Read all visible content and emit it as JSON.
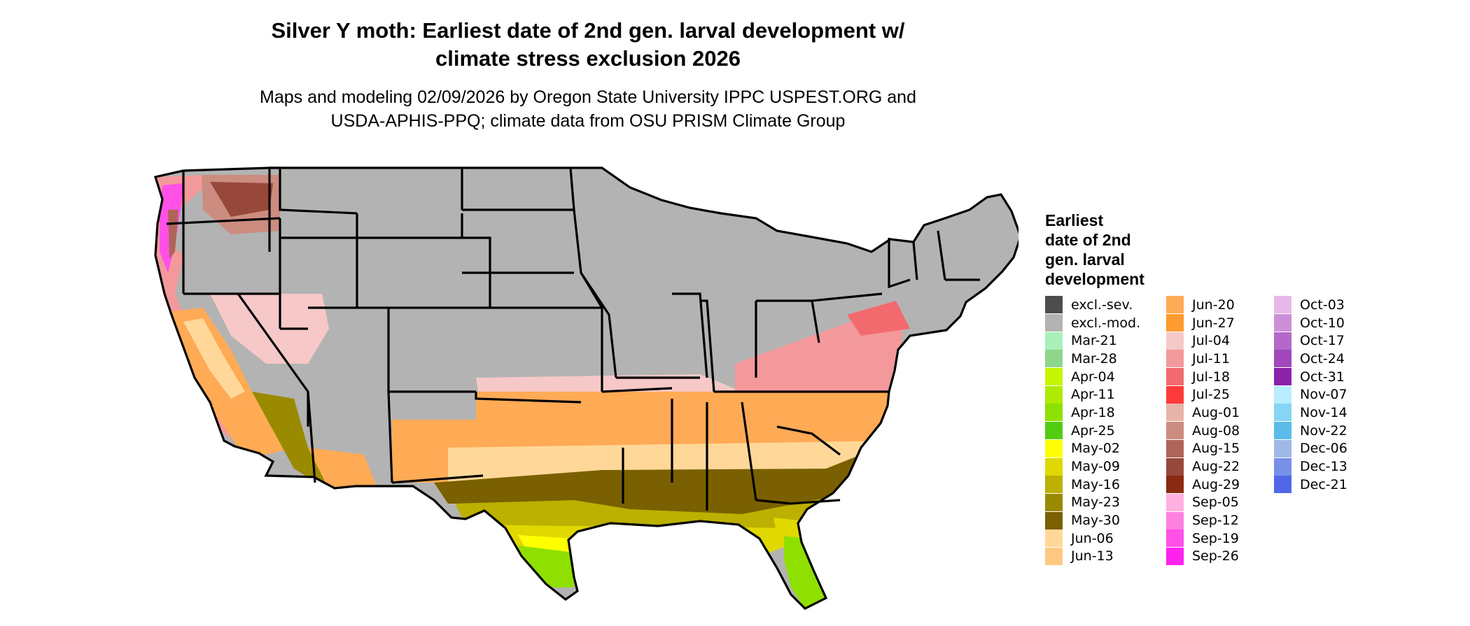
{
  "title_line1": "Silver Y moth: Earliest date of 2nd gen. larval development w/",
  "title_line2": "climate stress exclusion 2026",
  "subtitle_line1": "Maps and modeling 02/09/2026 by Oregon State University IPPC USPEST.ORG and",
  "subtitle_line2": "USDA-APHIS-PPQ; climate data from OSU PRISM Climate Group",
  "map": {
    "region": "contiguous-united-states",
    "excluded_color": "#b3b3b3",
    "state_border_color": "#000000"
  },
  "legend": {
    "title_lines": [
      "Earliest",
      "date of 2nd",
      "gen. larval",
      "development"
    ],
    "columns": [
      [
        {
          "label": "excl.-sev.",
          "color": "#4d4d4d"
        },
        {
          "label": "excl.-mod.",
          "color": "#b3b3b3"
        },
        {
          "label": "Mar-21",
          "color": "#a8f0b8"
        },
        {
          "label": "Mar-28",
          "color": "#8ed68a"
        },
        {
          "label": "Apr-04",
          "color": "#c6f500"
        },
        {
          "label": "Apr-11",
          "color": "#aeeb00"
        },
        {
          "label": "Apr-18",
          "color": "#8fe000"
        },
        {
          "label": "Apr-25",
          "color": "#52cc12"
        },
        {
          "label": "May-02",
          "color": "#ffff00"
        },
        {
          "label": "May-09",
          "color": "#e0d800"
        },
        {
          "label": "May-16",
          "color": "#bcb000"
        },
        {
          "label": "May-23",
          "color": "#9a8a00"
        },
        {
          "label": "May-30",
          "color": "#7a6000"
        },
        {
          "label": "Jun-06",
          "color": "#ffd899"
        },
        {
          "label": "Jun-13",
          "color": "#ffc882"
        }
      ],
      [
        {
          "label": "Jun-20",
          "color": "#ffaa55"
        },
        {
          "label": "Jun-27",
          "color": "#ff9a30"
        },
        {
          "label": "Jul-04",
          "color": "#f6c8c8"
        },
        {
          "label": "Jul-11",
          "color": "#f4999b"
        },
        {
          "label": "Jul-18",
          "color": "#f26a6e"
        },
        {
          "label": "Jul-25",
          "color": "#ff3a3a"
        },
        {
          "label": "Aug-01",
          "color": "#e8b4aa"
        },
        {
          "label": "Aug-08",
          "color": "#cc8c80"
        },
        {
          "label": "Aug-15",
          "color": "#b06458"
        },
        {
          "label": "Aug-22",
          "color": "#98483a"
        },
        {
          "label": "Aug-29",
          "color": "#8a2a10"
        },
        {
          "label": "Sep-05",
          "color": "#ffb0e0"
        },
        {
          "label": "Sep-12",
          "color": "#ff80e0"
        },
        {
          "label": "Sep-19",
          "color": "#ff50e8"
        },
        {
          "label": "Sep-26",
          "color": "#ff22ee"
        }
      ],
      [
        {
          "label": "Oct-03",
          "color": "#e6b8e8"
        },
        {
          "label": "Oct-10",
          "color": "#cc90d8"
        },
        {
          "label": "Oct-17",
          "color": "#b468c8"
        },
        {
          "label": "Oct-24",
          "color": "#a048bc"
        },
        {
          "label": "Oct-31",
          "color": "#8c22aa"
        },
        {
          "label": "Nov-07",
          "color": "#b8ecff"
        },
        {
          "label": "Nov-14",
          "color": "#88d4f4"
        },
        {
          "label": "Nov-22",
          "color": "#5cbce8"
        },
        {
          "label": "Dec-06",
          "color": "#a0b8e8"
        },
        {
          "label": "Dec-13",
          "color": "#7890e8"
        },
        {
          "label": "Dec-21",
          "color": "#5068e8"
        }
      ]
    ]
  }
}
